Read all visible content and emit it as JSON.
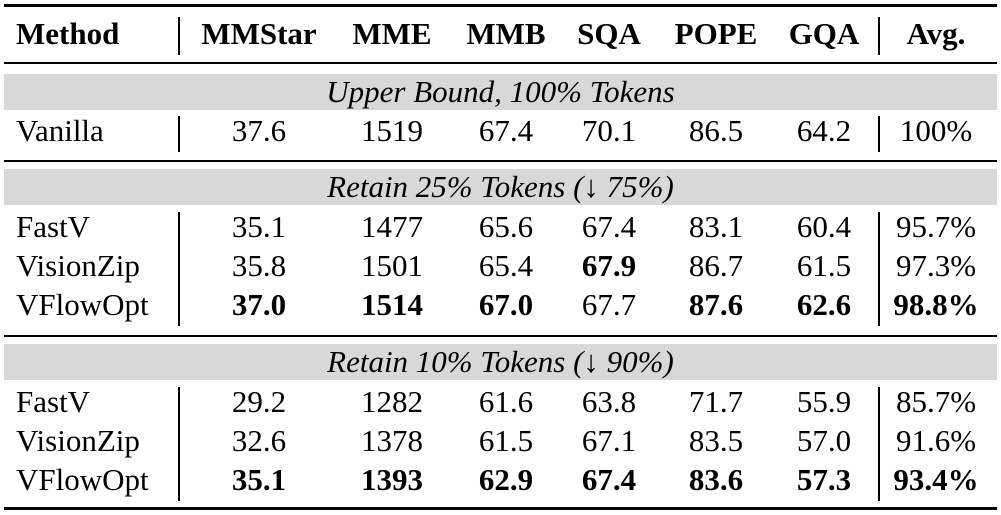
{
  "header": {
    "method": "Method",
    "mmstar": "MMStar",
    "mme": "MME",
    "mmb": "MMB",
    "sqa": "SQA",
    "pope": "POPE",
    "gqa": "GQA",
    "avg": "Avg."
  },
  "groups": [
    {
      "title": "Upper Bound, 100% Tokens",
      "rows": [
        {
          "method": "Vanilla",
          "mmstar": "37.6",
          "mme": "1519",
          "mmb": "67.4",
          "sqa": "70.1",
          "pope": "86.5",
          "gqa": "64.2",
          "avg": "100%"
        }
      ]
    },
    {
      "title": "Retain 25% Tokens (↓ 75%)",
      "rows": [
        {
          "method": "FastV",
          "mmstar": "35.1",
          "mme": "1477",
          "mmb": "65.6",
          "sqa": "67.4",
          "pope": "83.1",
          "gqa": "60.4",
          "avg": "95.7%"
        },
        {
          "method": "VisionZip",
          "mmstar": "35.8",
          "mme": "1501",
          "mmb": "65.4",
          "sqa": "67.9",
          "pope": "86.7",
          "gqa": "61.5",
          "avg": "97.3%"
        },
        {
          "method": "VFlowOpt",
          "mmstar": "37.0",
          "mme": "1514",
          "mmb": "67.0",
          "sqa": "67.7",
          "pope": "87.6",
          "gqa": "62.6",
          "avg": "98.8%"
        }
      ]
    },
    {
      "title": "Retain 10% Tokens (↓ 90%)",
      "rows": [
        {
          "method": "FastV",
          "mmstar": "29.2",
          "mme": "1282",
          "mmb": "61.6",
          "sqa": "63.8",
          "pope": "71.7",
          "gqa": "55.9",
          "avg": "85.7%"
        },
        {
          "method": "VisionZip",
          "mmstar": "32.6",
          "mme": "1378",
          "mmb": "61.5",
          "sqa": "67.1",
          "pope": "83.5",
          "gqa": "57.0",
          "avg": "91.6%"
        },
        {
          "method": "VFlowOpt",
          "mmstar": "35.1",
          "mme": "1393",
          "mmb": "62.9",
          "sqa": "67.4",
          "pope": "83.6",
          "gqa": "57.3",
          "avg": "93.4%"
        }
      ]
    }
  ]
}
